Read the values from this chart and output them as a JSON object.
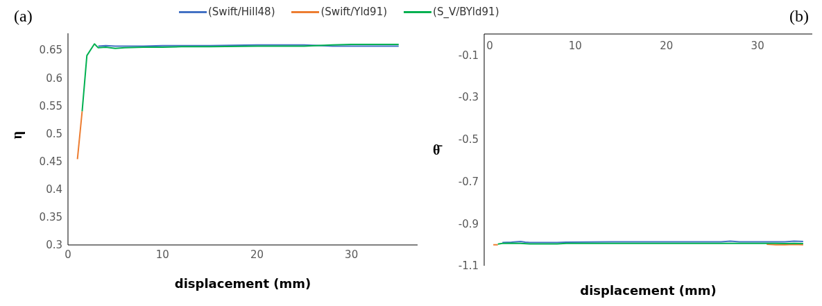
{
  "chart_data": [
    {
      "type": "line",
      "title": "(a)",
      "xlabel": "displacement (mm)",
      "ylabel": "η",
      "xlim": [
        0,
        37
      ],
      "xticks": [
        0,
        10,
        20,
        30
      ],
      "ylim": [
        0.3,
        0.68
      ],
      "yticks": [
        0.3,
        0.35,
        0.4,
        0.45,
        0.5,
        0.55,
        0.6,
        0.65
      ],
      "legend": "top",
      "marker": "none",
      "line_style": "solid",
      "series": [
        {
          "name": "(Swift/Hill48)",
          "color": "#4472c4",
          "x": [
            3.2,
            4,
            5,
            6,
            8,
            10,
            12,
            15,
            20,
            25,
            28,
            30,
            35
          ],
          "values": [
            0.657,
            0.658,
            0.657,
            0.657,
            0.657,
            0.658,
            0.658,
            0.658,
            0.659,
            0.659,
            0.657,
            0.657,
            0.657
          ]
        },
        {
          "name": "(Swift/Yld91)",
          "color": "#ed7d31",
          "x": [
            1,
            1.5
          ],
          "values": [
            0.454,
            0.54
          ]
        },
        {
          "name": "(S_V/BYld91)",
          "color": "#00b050",
          "x": [
            1.5,
            2,
            2.8,
            3.2,
            4,
            5,
            6,
            8,
            10,
            12,
            15,
            20,
            25,
            28,
            30,
            35
          ],
          "values": [
            0.54,
            0.64,
            0.661,
            0.654,
            0.655,
            0.653,
            0.654,
            0.655,
            0.655,
            0.656,
            0.656,
            0.657,
            0.657,
            0.659,
            0.66,
            0.66
          ]
        }
      ]
    },
    {
      "type": "line",
      "title": "(b)",
      "xlabel": "displacement (mm)",
      "ylabel": "θ̄",
      "xlim": [
        0,
        36
      ],
      "xticks": [
        0,
        10,
        20,
        30
      ],
      "ylim": [
        -1.1,
        0
      ],
      "yticks": [
        -1.1,
        -0.9,
        -0.7,
        -0.5,
        -0.3,
        -0.1
      ],
      "marker": "none",
      "line_style": "solid",
      "series": [
        {
          "color": "#4472c4",
          "x": [
            2,
            3,
            4,
            4.5,
            5,
            8,
            9,
            14,
            26,
            27,
            28,
            33,
            34,
            35
          ],
          "values": [
            -0.99,
            -0.988,
            -0.985,
            -0.988,
            -0.99,
            -0.99,
            -0.988,
            -0.986,
            -0.986,
            -0.983,
            -0.986,
            -0.986,
            -0.983,
            -0.985
          ]
        },
        {
          "color": "#ed7d31",
          "x": [
            1,
            1.5,
            2,
            31,
            32,
            33,
            34,
            35
          ],
          "values": [
            -1.0,
            -1.0,
            null,
            -0.998,
            -1.0,
            -1.0,
            -0.999,
            -1.0
          ]
        },
        {
          "color": "#00b050",
          "x": [
            1.5,
            2,
            3,
            4,
            5,
            8,
            9,
            14,
            20,
            30,
            32,
            33,
            34,
            35
          ],
          "values": [
            -0.997,
            -0.994,
            -0.993,
            -0.994,
            -0.996,
            -0.996,
            -0.994,
            -0.994,
            -0.994,
            -0.994,
            -0.994,
            -0.995,
            -0.994,
            -0.995
          ]
        }
      ]
    }
  ]
}
